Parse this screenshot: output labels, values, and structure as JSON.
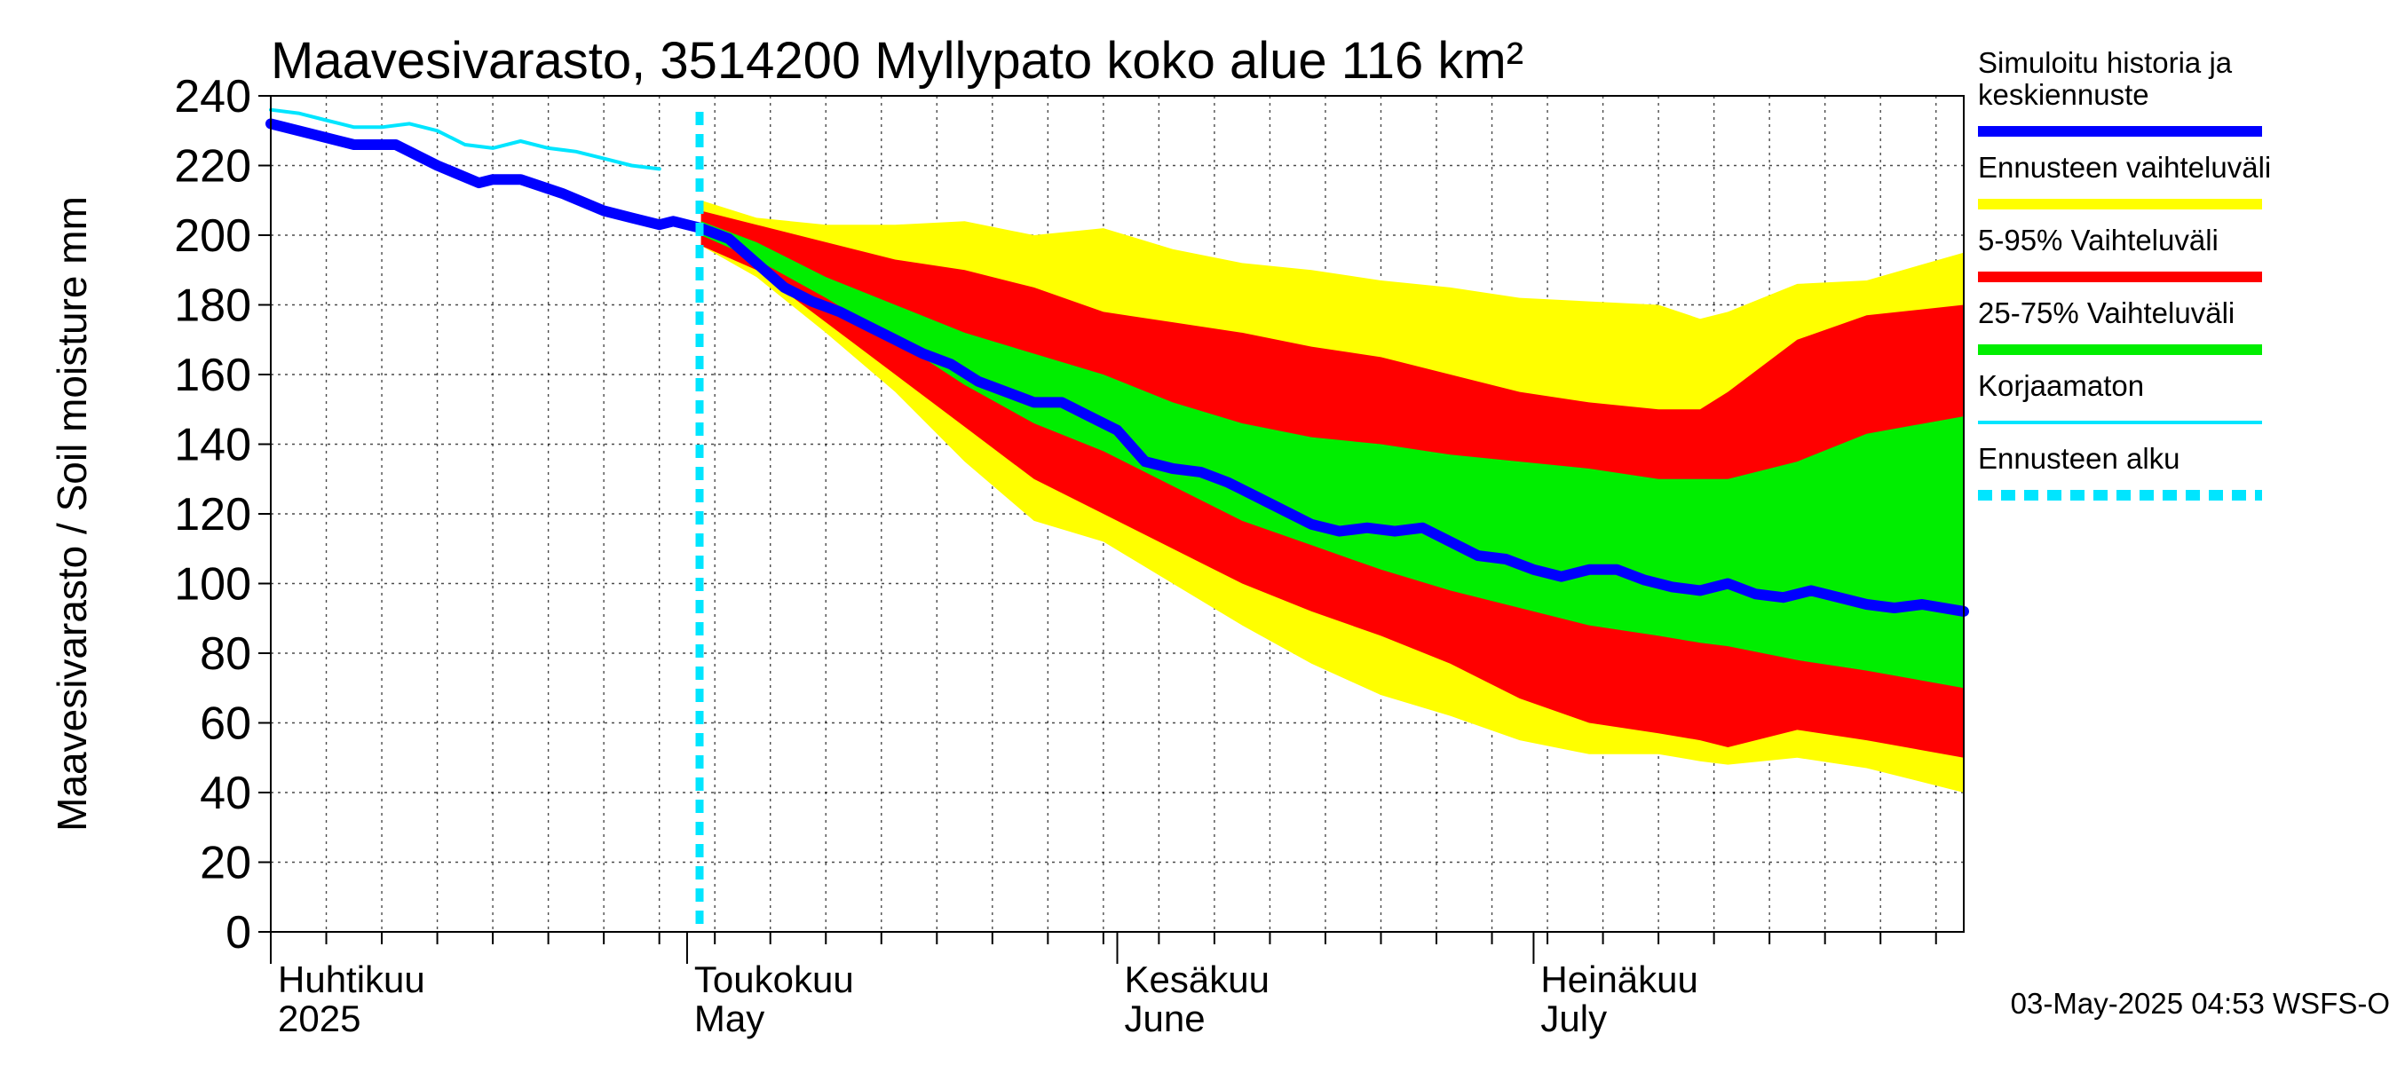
{
  "chart_data": {
    "type": "area",
    "title": "Maavesivarasto, 3514200 Myllypato koko alue 116 km²",
    "ylabel": "Maavesivarasto / Soil moisture   mm",
    "xlabel": "",
    "ylim": [
      0,
      240
    ],
    "yticks": [
      "0",
      "20",
      "40",
      "60",
      "80",
      "100",
      "120",
      "140",
      "160",
      "180",
      "200",
      "220",
      "240"
    ],
    "x_range_days": [
      0,
      122
    ],
    "forecast_start_day": 30.9,
    "months": [
      {
        "day": 0,
        "fi": "Huhtikuu",
        "en": "2025"
      },
      {
        "day": 30,
        "fi": "Toukokuu",
        "en": "May"
      },
      {
        "day": 61,
        "fi": "Kesäkuu",
        "en": "June"
      },
      {
        "day": 91,
        "fi": "Heinäkuu",
        "en": "July"
      }
    ],
    "series": [
      {
        "name": "Ennusteen vaihteluväli",
        "color": "#ffff00",
        "x": [
          31,
          35,
          40,
          45,
          50,
          55,
          60,
          65,
          70,
          75,
          80,
          85,
          90,
          95,
          100,
          103,
          105,
          110,
          115,
          122
        ],
        "upper": [
          210,
          205,
          203,
          203,
          204,
          200,
          202,
          196,
          192,
          190,
          187,
          185,
          182,
          181,
          180,
          176,
          178,
          186,
          187,
          195
        ],
        "lower": [
          197,
          188,
          172,
          155,
          135,
          118,
          112,
          100,
          88,
          77,
          68,
          62,
          55,
          51,
          51,
          49,
          48,
          50,
          47,
          40
        ]
      },
      {
        "name": "5-95% Vaihteluväli",
        "color": "#ff0000",
        "x": [
          31,
          35,
          40,
          45,
          50,
          55,
          60,
          65,
          70,
          75,
          80,
          85,
          90,
          95,
          100,
          103,
          105,
          110,
          115,
          122
        ],
        "upper": [
          207,
          203,
          198,
          193,
          190,
          185,
          178,
          175,
          172,
          168,
          165,
          160,
          155,
          152,
          150,
          150,
          155,
          170,
          177,
          180
        ],
        "lower": [
          197,
          190,
          175,
          160,
          145,
          130,
          120,
          110,
          100,
          92,
          85,
          77,
          67,
          60,
          57,
          55,
          53,
          58,
          55,
          50
        ]
      },
      {
        "name": "25-75% Vaihteluväli",
        "color": "#00ee00",
        "x": [
          31,
          35,
          40,
          45,
          50,
          55,
          60,
          65,
          70,
          75,
          80,
          85,
          90,
          95,
          100,
          103,
          105,
          110,
          115,
          122
        ],
        "upper": [
          204,
          198,
          188,
          180,
          172,
          166,
          160,
          152,
          146,
          142,
          140,
          137,
          135,
          133,
          130,
          130,
          130,
          135,
          143,
          148
        ],
        "lower": [
          200,
          193,
          182,
          170,
          157,
          146,
          138,
          128,
          118,
          111,
          104,
          98,
          93,
          88,
          85,
          83,
          82,
          78,
          75,
          70
        ]
      },
      {
        "name": "Simuloitu historia ja keskiennuste",
        "color": "#0000ff",
        "x": [
          0,
          3,
          6,
          9,
          12,
          15,
          16,
          18,
          21,
          24,
          26,
          28,
          29,
          30,
          31,
          33,
          35,
          37,
          39,
          41,
          43,
          45,
          47,
          49,
          51,
          53,
          55,
          57,
          59,
          61,
          63,
          65,
          67,
          69,
          71,
          73,
          75,
          77,
          79,
          81,
          83,
          85,
          87,
          89,
          91,
          93,
          95,
          97,
          99,
          101,
          103,
          105,
          107,
          109,
          111,
          113,
          115,
          117,
          119,
          122
        ],
        "y": [
          232,
          229,
          226,
          226,
          220,
          215,
          216,
          216,
          212,
          207,
          205,
          203,
          204,
          203,
          202,
          199,
          192,
          185,
          181,
          178,
          174,
          170,
          166,
          163,
          158,
          155,
          152,
          152,
          148,
          144,
          135,
          133,
          132,
          129,
          125,
          121,
          117,
          115,
          116,
          115,
          116,
          112,
          108,
          107,
          104,
          102,
          104,
          104,
          101,
          99,
          98,
          100,
          97,
          96,
          98,
          96,
          94,
          93,
          94,
          92
        ]
      },
      {
        "name": "Korjaamaton",
        "color": "#00e5ff",
        "x": [
          0,
          2,
          4,
          6,
          8,
          10,
          12,
          14,
          16,
          18,
          20,
          22,
          24,
          26,
          28
        ],
        "y": [
          236,
          235,
          233,
          231,
          231,
          232,
          230,
          226,
          225,
          227,
          225,
          224,
          222,
          220,
          219
        ]
      }
    ],
    "legend": [
      {
        "label": "Simuloitu historia ja keskiennuste",
        "color": "#0000ff",
        "style": "solid"
      },
      {
        "label": "Ennusteen vaihteluväli",
        "color": "#ffff00",
        "style": "solid"
      },
      {
        "label": "5-95% Vaihteluväli",
        "color": "#ff0000",
        "style": "solid"
      },
      {
        "label": "25-75% Vaihteluväli",
        "color": "#00ee00",
        "style": "solid"
      },
      {
        "label": "Korjaamaton",
        "color": "#00e5ff",
        "style": "thin"
      },
      {
        "label": "Ennusteen alku",
        "color": "#00e5ff",
        "style": "dashed"
      }
    ],
    "legend_position": "right",
    "grid": true
  },
  "footer": "03-May-2025 04:53 WSFS-O"
}
